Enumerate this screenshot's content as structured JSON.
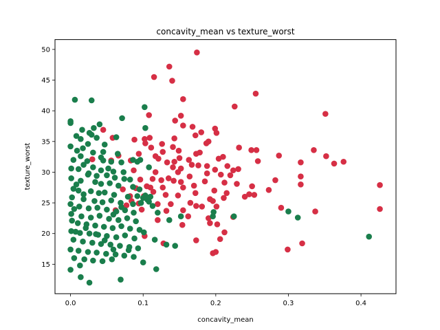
{
  "chart_data": {
    "type": "scatter",
    "title": "concavity_mean vs texture_worst",
    "xlabel": "concavity_mean",
    "ylabel": "texture_worst",
    "xlim": [
      -0.0214,
      0.4482
    ],
    "ylim": [
      10.2,
      51.6
    ],
    "xticks": [
      0.0,
      0.1,
      0.2,
      0.3,
      0.4
    ],
    "xtick_labels": [
      "0.0",
      "0.1",
      "0.2",
      "0.3",
      "0.4"
    ],
    "yticks": [
      15,
      20,
      25,
      30,
      35,
      40,
      45,
      50
    ],
    "ytick_labels": [
      "15",
      "20",
      "25",
      "30",
      "35",
      "40",
      "45",
      "50"
    ],
    "grid": false,
    "legend": "none",
    "series": [
      {
        "color": "#d62f45",
        "points": [
          [
            0.174,
            49.5
          ],
          [
            0.136,
            47.2
          ],
          [
            0.115,
            45.5
          ],
          [
            0.14,
            44.9
          ],
          [
            0.255,
            42.8
          ],
          [
            0.155,
            41.9
          ],
          [
            0.226,
            40.7
          ],
          [
            0.108,
            39.3
          ],
          [
            0.351,
            39.5
          ],
          [
            0.152,
            39.2
          ],
          [
            0.144,
            38.4
          ],
          [
            0.199,
            37.1
          ],
          [
            0.168,
            37.4
          ],
          [
            0.155,
            37.6
          ],
          [
            0.18,
            36.5
          ],
          [
            0.045,
            36.9
          ],
          [
            0.201,
            36.4
          ],
          [
            0.172,
            36.0
          ],
          [
            0.143,
            35.5
          ],
          [
            0.102,
            35.4
          ],
          [
            0.109,
            35.6
          ],
          [
            0.088,
            35.3
          ],
          [
            0.058,
            35.6
          ],
          [
            0.19,
            35.0
          ],
          [
            0.187,
            34.7
          ],
          [
            0.126,
            34.6
          ],
          [
            0.103,
            34.7
          ],
          [
            0.141,
            34.1
          ],
          [
            0.111,
            34.0
          ],
          [
            0.149,
            33.5
          ],
          [
            0.232,
            34.0
          ],
          [
            0.249,
            33.6
          ],
          [
            0.335,
            33.6
          ],
          [
            0.256,
            33.6
          ],
          [
            0.178,
            33.2
          ],
          [
            0.127,
            33.3
          ],
          [
            0.173,
            33.0
          ],
          [
            0.094,
            33.0
          ],
          [
            0.066,
            32.7
          ],
          [
            0.117,
            32.6
          ],
          [
            0.21,
            32.5
          ],
          [
            0.15,
            32.3
          ],
          [
            0.204,
            32.2
          ],
          [
            0.121,
            32.2
          ],
          [
            0.163,
            32.0
          ],
          [
            0.083,
            31.9
          ],
          [
            0.056,
            31.9
          ],
          [
            0.03,
            32.1
          ],
          [
            0.143,
            31.7
          ],
          [
            0.258,
            31.8
          ],
          [
            0.133,
            31.6
          ],
          [
            0.167,
            31.2
          ],
          [
            0.176,
            31.1
          ],
          [
            0.188,
            31.0
          ],
          [
            0.216,
            31.0
          ],
          [
            0.141,
            30.8
          ],
          [
            0.152,
            30.6
          ],
          [
            0.199,
            30.4
          ],
          [
            0.224,
            30.3
          ],
          [
            0.231,
            30.5
          ],
          [
            0.087,
            30.3
          ],
          [
            0.148,
            30.0
          ],
          [
            0.117,
            30.0
          ],
          [
            0.352,
            32.6
          ],
          [
            0.376,
            31.7
          ],
          [
            0.363,
            31.4
          ],
          [
            0.317,
            31.6
          ],
          [
            0.287,
            32.7
          ],
          [
            0.188,
            29.8
          ],
          [
            0.207,
            29.6
          ],
          [
            0.22,
            29.5
          ],
          [
            0.164,
            29.3
          ],
          [
            0.135,
            29.0
          ],
          [
            0.113,
            28.9
          ],
          [
            0.096,
            28.8
          ],
          [
            0.152,
            28.4
          ],
          [
            0.185,
            28.5
          ],
          [
            0.142,
            28.6
          ],
          [
            0.125,
            28.7
          ],
          [
            0.212,
            28.3
          ],
          [
            0.229,
            28.1
          ],
          [
            0.25,
            27.7
          ],
          [
            0.282,
            28.7
          ],
          [
            0.317,
            29.3
          ],
          [
            0.317,
            28.0
          ],
          [
            0.426,
            27.9
          ],
          [
            0.17,
            27.8
          ],
          [
            0.155,
            27.5
          ],
          [
            0.127,
            27.5
          ],
          [
            0.11,
            27.5
          ],
          [
            0.09,
            27.4
          ],
          [
            0.072,
            27.2
          ],
          [
            0.198,
            27.0
          ],
          [
            0.273,
            27.1
          ],
          [
            0.215,
            26.6
          ],
          [
            0.246,
            26.4
          ],
          [
            0.253,
            26.3
          ],
          [
            0.24,
            26.0
          ],
          [
            0.172,
            26.6
          ],
          [
            0.148,
            26.2
          ],
          [
            0.131,
            26.3
          ],
          [
            0.101,
            26.1
          ],
          [
            0.082,
            26.1
          ],
          [
            0.211,
            25.8
          ],
          [
            0.192,
            25.6
          ],
          [
            0.196,
            25.3
          ],
          [
            0.165,
            25.0
          ],
          [
            0.138,
            24.8
          ],
          [
            0.12,
            24.8
          ],
          [
            0.094,
            24.9
          ],
          [
            0.077,
            24.6
          ],
          [
            0.173,
            24.5
          ],
          [
            0.181,
            24.4
          ],
          [
            0.201,
            24.4
          ],
          [
            0.29,
            24.2
          ],
          [
            0.426,
            24.0
          ],
          [
            0.337,
            23.6
          ],
          [
            0.155,
            23.8
          ],
          [
            0.132,
            23.7
          ],
          [
            0.098,
            23.9
          ],
          [
            0.062,
            23.8
          ],
          [
            0.162,
            22.8
          ],
          [
            0.19,
            22.5
          ],
          [
            0.224,
            22.7
          ],
          [
            0.12,
            22.2
          ],
          [
            0.192,
            21.7
          ],
          [
            0.202,
            21.5
          ],
          [
            0.154,
            21.4
          ],
          [
            0.212,
            20.2
          ],
          [
            0.102,
            19.6
          ],
          [
            0.173,
            18.9
          ],
          [
            0.206,
            19.1
          ],
          [
            0.128,
            18.4
          ],
          [
            0.319,
            18.4
          ],
          [
            0.2,
            17.0
          ],
          [
            0.196,
            16.8
          ],
          [
            0.299,
            17.4
          ],
          [
            0.105,
            27.7
          ],
          [
            0.114,
            26.8
          ],
          [
            0.084,
            25.3
          ]
        ]
      },
      {
        "color": "#1a7e4c",
        "points": [
          [
            0.006,
            41.8
          ],
          [
            0.029,
            41.7
          ],
          [
            0.102,
            40.6
          ],
          [
            0.071,
            38.8
          ],
          [
            0.0,
            38.3
          ],
          [
            0.0,
            38.0
          ],
          [
            0.04,
            37.8
          ],
          [
            0.032,
            37.2
          ],
          [
            0.103,
            37.2
          ],
          [
            0.016,
            36.9
          ],
          [
            0.026,
            36.4
          ],
          [
            0.008,
            35.9
          ],
          [
            0.036,
            35.6
          ],
          [
            0.014,
            35.4
          ],
          [
            0.063,
            35.7
          ],
          [
            0.024,
            34.6
          ],
          [
            0.0,
            34.2
          ],
          [
            0.017,
            33.9
          ],
          [
            0.045,
            33.3
          ],
          [
            0.031,
            33.2
          ],
          [
            0.014,
            32.6
          ],
          [
            0.042,
            32.4
          ],
          [
            0.004,
            32.0
          ],
          [
            0.023,
            31.8
          ],
          [
            0.045,
            31.9
          ],
          [
            0.056,
            31.7
          ],
          [
            0.07,
            31.6
          ],
          [
            0.092,
            31.7
          ],
          [
            0.018,
            31.2
          ],
          [
            0.031,
            30.8
          ],
          [
            0.001,
            30.6
          ],
          [
            0.011,
            30.5
          ],
          [
            0.042,
            30.3
          ],
          [
            0.059,
            30.1
          ],
          [
            0.073,
            30.0
          ],
          [
            0.024,
            29.6
          ],
          [
            0.036,
            29.4
          ],
          [
            0.05,
            29.5
          ],
          [
            0.061,
            29.1
          ],
          [
            0.082,
            28.8
          ],
          [
            0.001,
            29.0
          ],
          [
            0.014,
            28.6
          ],
          [
            0.034,
            28.4
          ],
          [
            0.042,
            28.1
          ],
          [
            0.054,
            28.2
          ],
          [
            0.066,
            27.8
          ],
          [
            0.086,
            27.6
          ],
          [
            0.004,
            27.3
          ],
          [
            0.011,
            27.0
          ],
          [
            0.028,
            26.9
          ],
          [
            0.039,
            26.6
          ],
          [
            0.047,
            26.7
          ],
          [
            0.06,
            26.3
          ],
          [
            0.079,
            26.0
          ],
          [
            0.092,
            26.1
          ],
          [
            0.103,
            26.2
          ],
          [
            0.002,
            25.9
          ],
          [
            0.018,
            25.6
          ],
          [
            0.033,
            25.3
          ],
          [
            0.044,
            25.1
          ],
          [
            0.056,
            25.4
          ],
          [
            0.069,
            25.0
          ],
          [
            0.086,
            24.8
          ],
          [
            0.097,
            25.0
          ],
          [
            0.106,
            25.5
          ],
          [
            0.0,
            24.8
          ],
          [
            0.012,
            24.4
          ],
          [
            0.025,
            24.1
          ],
          [
            0.037,
            24.2
          ],
          [
            0.05,
            23.9
          ],
          [
            0.063,
            23.6
          ],
          [
            0.075,
            23.8
          ],
          [
            0.087,
            23.4
          ],
          [
            0.001,
            23.2
          ],
          [
            0.015,
            22.8
          ],
          [
            0.028,
            22.6
          ],
          [
            0.04,
            22.9
          ],
          [
            0.053,
            22.4
          ],
          [
            0.066,
            22.2
          ],
          [
            0.078,
            22.5
          ],
          [
            0.09,
            22.0
          ],
          [
            0.002,
            22.1
          ],
          [
            0.01,
            21.7
          ],
          [
            0.022,
            21.5
          ],
          [
            0.034,
            21.3
          ],
          [
            0.046,
            21.1
          ],
          [
            0.058,
            20.9
          ],
          [
            0.07,
            21.2
          ],
          [
            0.082,
            20.8
          ],
          [
            0.095,
            20.6
          ],
          [
            0.001,
            20.4
          ],
          [
            0.013,
            20.1
          ],
          [
            0.026,
            20.0
          ],
          [
            0.038,
            19.8
          ],
          [
            0.05,
            19.6
          ],
          [
            0.063,
            19.4
          ],
          [
            0.075,
            19.7
          ],
          [
            0.088,
            19.2
          ],
          [
            0.004,
            19.0
          ],
          [
            0.017,
            18.7
          ],
          [
            0.03,
            18.5
          ],
          [
            0.042,
            18.3
          ],
          [
            0.055,
            18.2
          ],
          [
            0.068,
            18.0
          ],
          [
            0.081,
            17.8
          ],
          [
            0.093,
            17.6
          ],
          [
            0.0,
            17.4
          ],
          [
            0.011,
            17.2
          ],
          [
            0.024,
            17.0
          ],
          [
            0.036,
            16.9
          ],
          [
            0.049,
            16.7
          ],
          [
            0.062,
            16.6
          ],
          [
            0.074,
            16.4
          ],
          [
            0.087,
            16.2
          ],
          [
            0.005,
            16.0
          ],
          [
            0.019,
            15.8
          ],
          [
            0.031,
            15.6
          ],
          [
            0.044,
            15.5
          ],
          [
            0.057,
            15.8
          ],
          [
            0.1,
            15.3
          ],
          [
            0.013,
            14.8
          ],
          [
            0.0,
            14.1
          ],
          [
            0.118,
            14.2
          ],
          [
            0.014,
            12.9
          ],
          [
            0.026,
            12.0
          ],
          [
            0.069,
            12.5
          ],
          [
            0.1,
            25.8
          ],
          [
            0.108,
            25.2
          ],
          [
            0.113,
            24.5
          ],
          [
            0.12,
            23.4
          ],
          [
            0.136,
            22.2
          ],
          [
            0.152,
            22.8
          ],
          [
            0.144,
            18.0
          ],
          [
            0.101,
            20.2
          ],
          [
            0.116,
            19.0
          ],
          [
            0.132,
            18.2
          ],
          [
            0.196,
            22.8
          ],
          [
            0.225,
            22.8
          ],
          [
            0.197,
            23.5
          ],
          [
            0.3,
            23.6
          ],
          [
            0.313,
            22.6
          ],
          [
            0.411,
            19.5
          ],
          [
            0.096,
            32.0
          ],
          [
            0.086,
            32.0
          ],
          [
            0.108,
            30.8
          ],
          [
            0.074,
            28.9
          ],
          [
            0.095,
            27.2
          ],
          [
            0.11,
            26.0
          ],
          [
            0.07,
            24.3
          ],
          [
            0.059,
            23.1
          ],
          [
            0.021,
            20.9
          ],
          [
            0.007,
            20.3
          ],
          [
            0.035,
            19.9
          ],
          [
            0.047,
            18.9
          ],
          [
            0.059,
            17.4
          ],
          [
            0.08,
            17.3
          ],
          [
            0.005,
            24.0
          ],
          [
            0.018,
            26.4
          ],
          [
            0.008,
            28.0
          ],
          [
            0.025,
            29.8
          ],
          [
            0.052,
            30.6
          ],
          [
            0.065,
            33.0
          ],
          [
            0.047,
            34.5
          ],
          [
            0.029,
            36.1
          ],
          [
            0.009,
            33.5
          ]
        ]
      }
    ]
  }
}
